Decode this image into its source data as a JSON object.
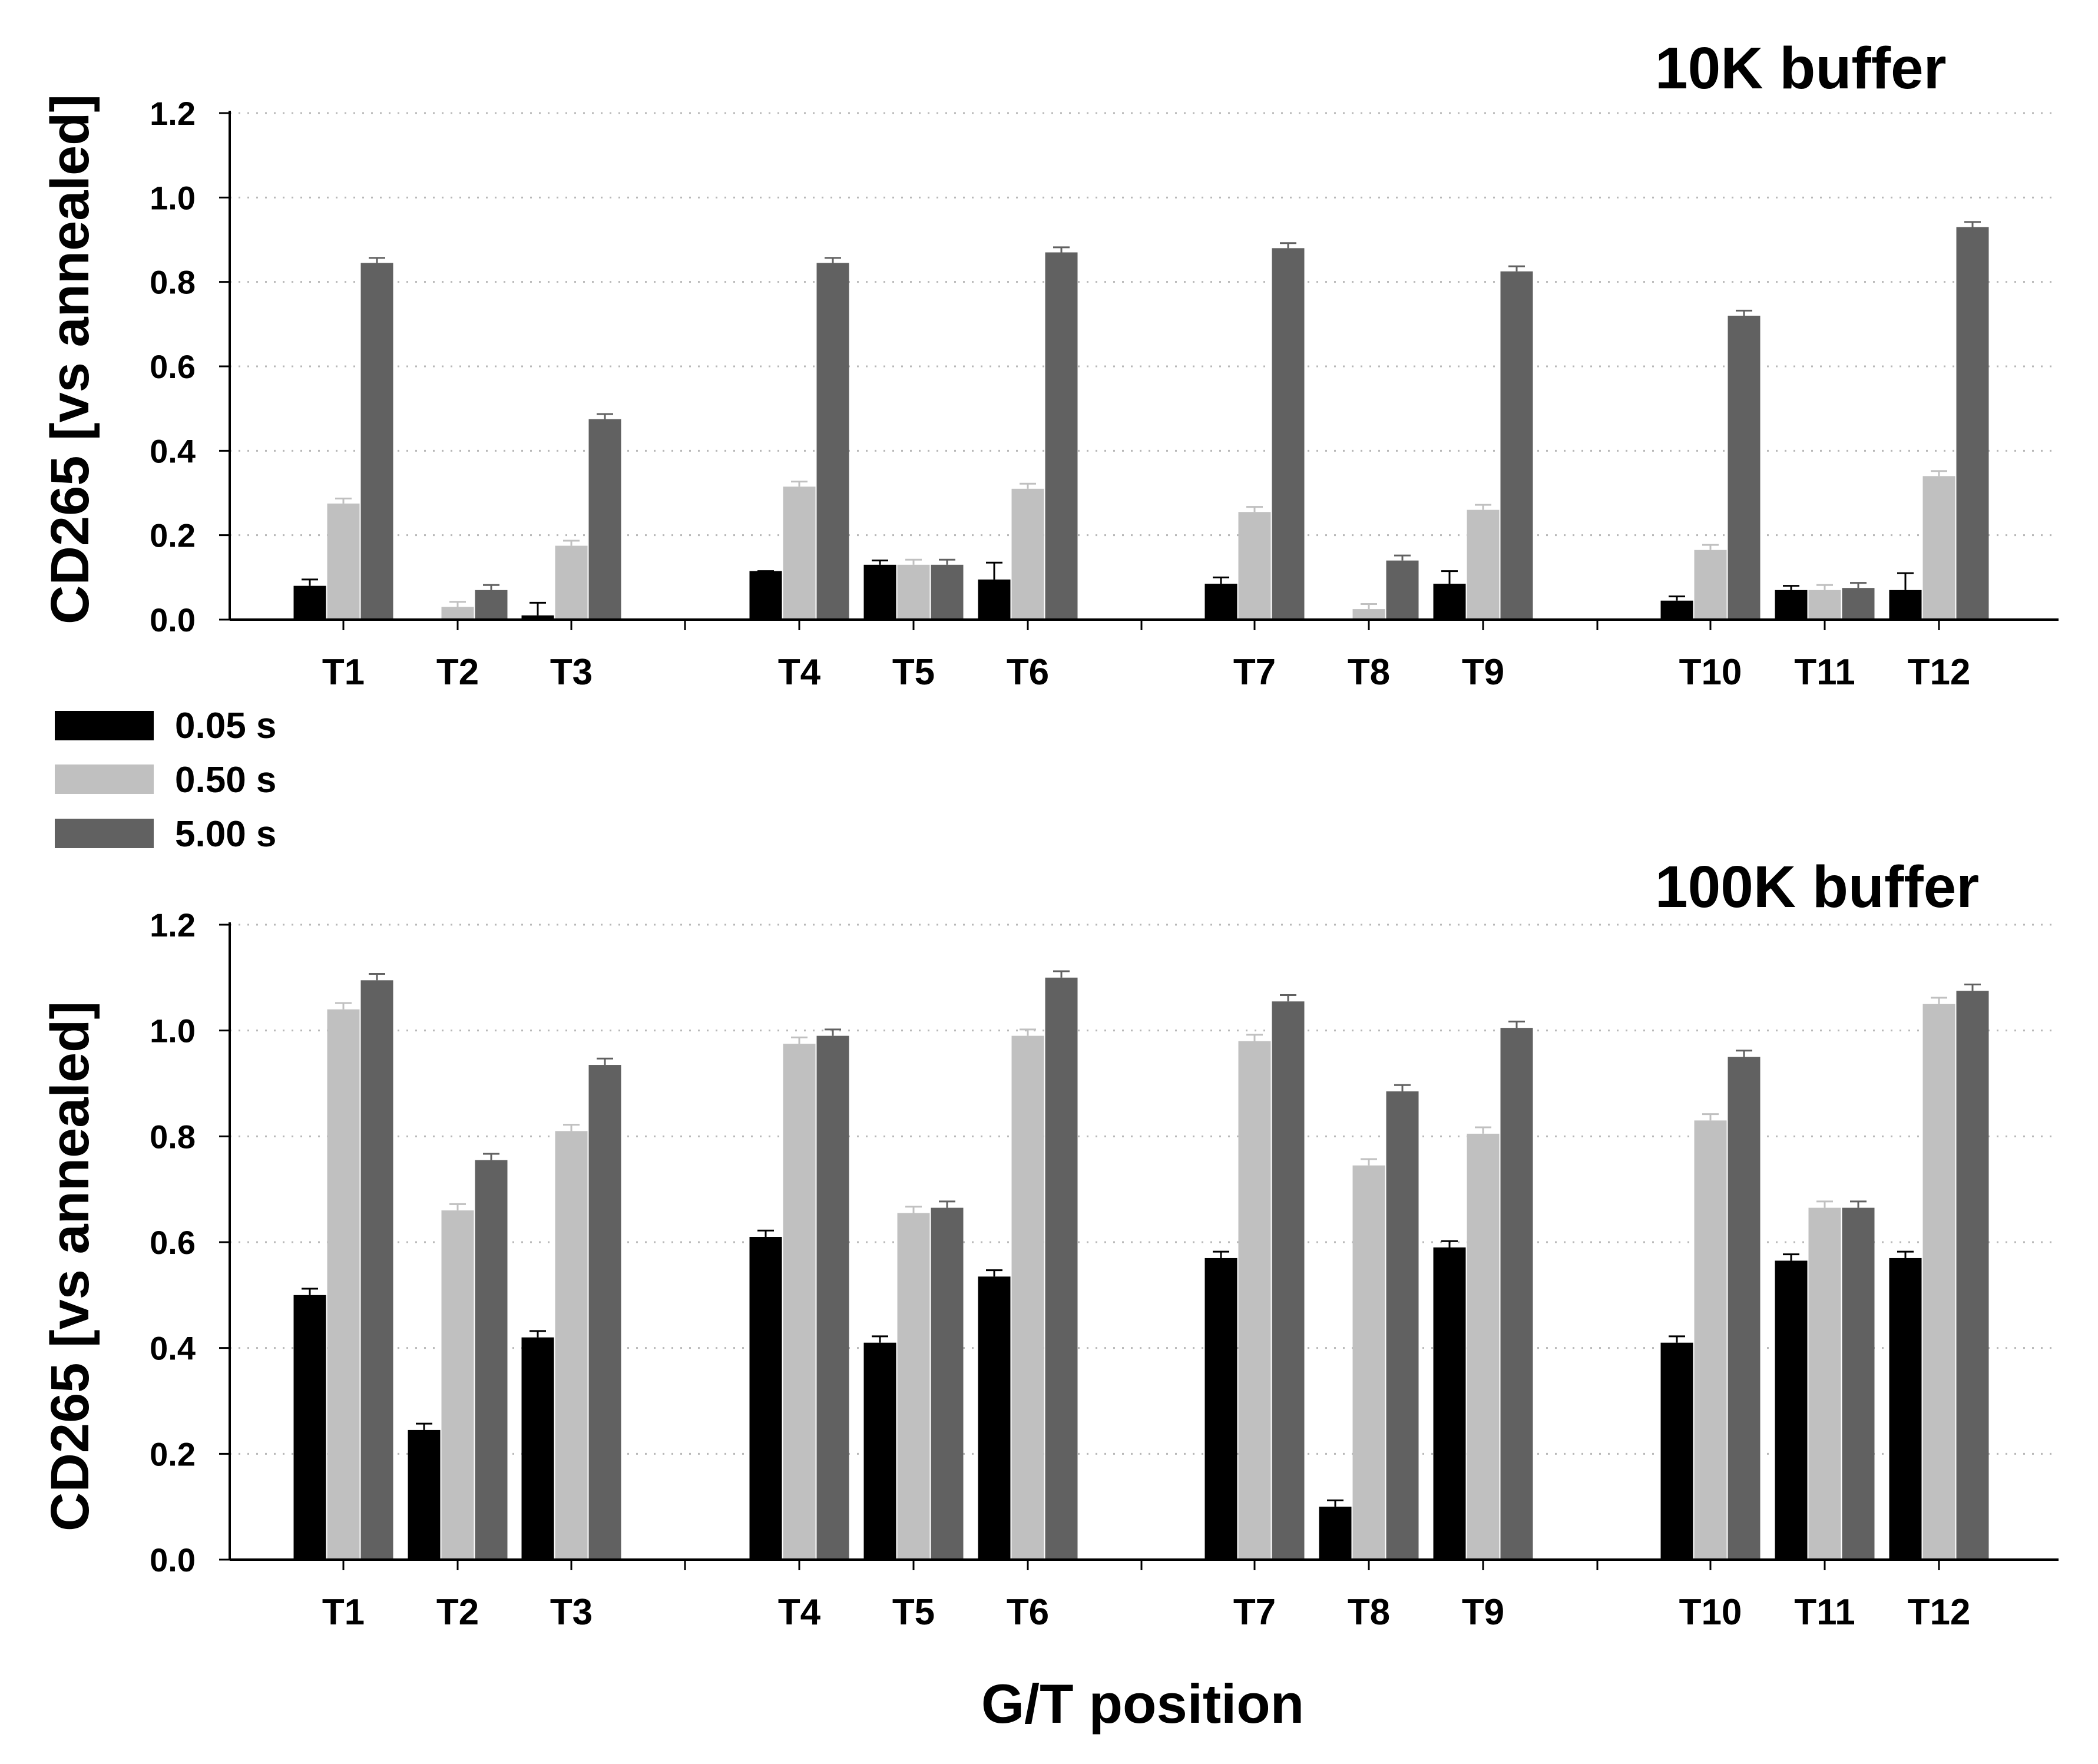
{
  "chart_data": [
    {
      "type": "bar",
      "title": "10K buffer",
      "xlabel": "",
      "ylabel": "CD265 [vs annealed]",
      "ylim": [
        0,
        1.2
      ],
      "yticks": [
        "0.0",
        "0.2",
        "0.4",
        "0.6",
        "0.8",
        "1.0",
        "1.2"
      ],
      "grid": "horizontal dotted",
      "categories": [
        "T1",
        "T2",
        "T3",
        "T4",
        "T5",
        "T6",
        "T7",
        "T8",
        "T9",
        "T10",
        "T11",
        "T12"
      ],
      "series": [
        {
          "name": "0.05 s",
          "color": "#000000",
          "values": [
            0.08,
            0.0,
            0.01,
            0.115,
            0.13,
            0.095,
            0.085,
            0.0,
            0.085,
            0.045,
            0.07,
            0.07
          ],
          "errors": [
            0.015,
            0.0,
            0.03,
            0.0,
            0.01,
            0.04,
            0.015,
            0.0,
            0.03,
            0.01,
            0.01,
            0.04
          ]
        },
        {
          "name": "0.50 s",
          "color": "#c0c0c0",
          "values": [
            0.275,
            0.03,
            0.175,
            0.315,
            0.13,
            0.31,
            0.255,
            0.025,
            0.26,
            0.165,
            0.07,
            0.34
          ]
        },
        {
          "name": "5.00 s",
          "color": "#616161",
          "values": [
            0.845,
            0.07,
            0.475,
            0.845,
            0.13,
            0.87,
            0.88,
            0.14,
            0.825,
            0.72,
            0.075,
            0.93
          ]
        }
      ]
    },
    {
      "type": "bar",
      "title": "100K buffer",
      "xlabel": "G/T position",
      "ylabel": "CD265 [vs annealed]",
      "ylim": [
        0,
        1.2
      ],
      "yticks": [
        "0.0",
        "0.2",
        "0.4",
        "0.6",
        "0.8",
        "1.0",
        "1.2"
      ],
      "grid": "horizontal dotted",
      "categories": [
        "T1",
        "T2",
        "T3",
        "T4",
        "T5",
        "T6",
        "T7",
        "T8",
        "T9",
        "T10",
        "T11",
        "T12"
      ],
      "series": [
        {
          "name": "0.05 s",
          "color": "#000000",
          "values": [
            0.5,
            0.245,
            0.42,
            0.61,
            0.41,
            0.535,
            0.57,
            0.1,
            0.59,
            0.41,
            0.565,
            0.57
          ]
        },
        {
          "name": "0.50 s",
          "color": "#c0c0c0",
          "values": [
            1.04,
            0.66,
            0.81,
            0.975,
            0.655,
            0.99,
            0.98,
            0.745,
            0.805,
            0.83,
            0.665,
            1.05
          ]
        },
        {
          "name": "5.00 s",
          "color": "#616161",
          "values": [
            1.095,
            0.755,
            0.935,
            0.99,
            0.665,
            1.1,
            1.055,
            0.885,
            1.005,
            0.95,
            0.665,
            1.075
          ]
        }
      ]
    }
  ],
  "legend": {
    "items": [
      {
        "label": "0.05 s",
        "color": "#000000"
      },
      {
        "label": "0.50 s",
        "color": "#c0c0c0"
      },
      {
        "label": "5.00 s",
        "color": "#616161"
      }
    ]
  }
}
